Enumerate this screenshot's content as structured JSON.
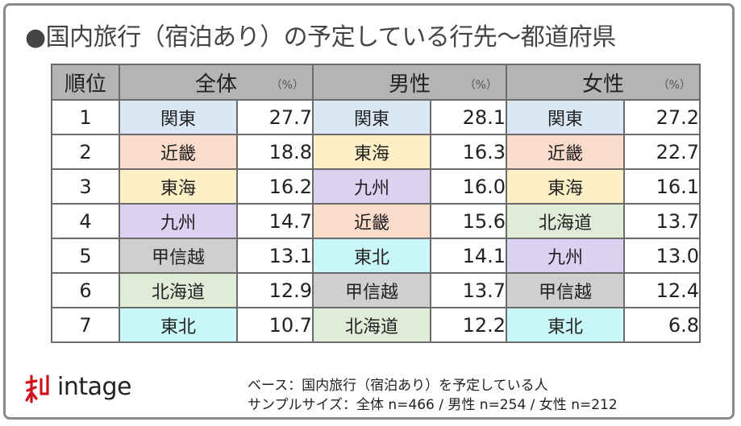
{
  "title": "●国内旅行（宿泊あり）の予定している行先～都道府県",
  "table": {
    "rank_header": "順位",
    "groups": [
      {
        "name": "全体",
        "unit": "（%）"
      },
      {
        "name": "男性",
        "unit": "（%）"
      },
      {
        "name": "女性",
        "unit": "（%）"
      }
    ],
    "rows": [
      {
        "rank": "1",
        "cells": [
          {
            "region": "関東",
            "value": "27.7",
            "color": "#dae8f5"
          },
          {
            "region": "関東",
            "value": "28.1",
            "color": "#dae8f5"
          },
          {
            "region": "関東",
            "value": "27.2",
            "color": "#dae8f5"
          }
        ]
      },
      {
        "rank": "2",
        "cells": [
          {
            "region": "近畿",
            "value": "18.8",
            "color": "#fbdccb"
          },
          {
            "region": "東海",
            "value": "16.3",
            "color": "#fdf0c6"
          },
          {
            "region": "近畿",
            "value": "22.7",
            "color": "#fbdccb"
          }
        ]
      },
      {
        "rank": "3",
        "cells": [
          {
            "region": "東海",
            "value": "16.2",
            "color": "#fdf0c6"
          },
          {
            "region": "九州",
            "value": "16.0",
            "color": "#ddd1f1"
          },
          {
            "region": "東海",
            "value": "16.1",
            "color": "#fdf0c6"
          }
        ]
      },
      {
        "rank": "4",
        "cells": [
          {
            "region": "九州",
            "value": "14.7",
            "color": "#ddd1f1"
          },
          {
            "region": "近畿",
            "value": "15.6",
            "color": "#fbdccb"
          },
          {
            "region": "北海道",
            "value": "13.7",
            "color": "#e0ebd8"
          }
        ]
      },
      {
        "rank": "5",
        "cells": [
          {
            "region": "甲信越",
            "value": "13.1",
            "color": "#cfcfcf"
          },
          {
            "region": "東北",
            "value": "14.1",
            "color": "#c9f6f6"
          },
          {
            "region": "九州",
            "value": "13.0",
            "color": "#ddd1f1"
          }
        ]
      },
      {
        "rank": "6",
        "cells": [
          {
            "region": "北海道",
            "value": "12.9",
            "color": "#e0ebd8"
          },
          {
            "region": "甲信越",
            "value": "13.7",
            "color": "#cfcfcf"
          },
          {
            "region": "甲信越",
            "value": "12.4",
            "color": "#cfcfcf"
          }
        ]
      },
      {
        "rank": "7",
        "cells": [
          {
            "region": "東北",
            "value": "10.7",
            "color": "#c9f6f6"
          },
          {
            "region": "北海道",
            "value": "12.2",
            "color": "#e0ebd8"
          },
          {
            "region": "東北",
            "value": "6.8",
            "color": "#c9f6f6"
          }
        ]
      }
    ]
  },
  "chart_data": {
    "type": "table",
    "title": "●国内旅行（宿泊あり）の予定している行先～都道府県",
    "columns": [
      "順位",
      "全体",
      "（%）",
      "男性",
      "（%）",
      "女性",
      "（%）"
    ],
    "rows": [
      [
        "1",
        "関東",
        27.7,
        "関東",
        28.1,
        "関東",
        27.2
      ],
      [
        "2",
        "近畿",
        18.8,
        "東海",
        16.3,
        "近畿",
        22.7
      ],
      [
        "3",
        "東海",
        16.2,
        "九州",
        16.0,
        "東海",
        16.1
      ],
      [
        "4",
        "九州",
        14.7,
        "近畿",
        15.6,
        "北海道",
        13.7
      ],
      [
        "5",
        "甲信越",
        13.1,
        "東北",
        14.1,
        "九州",
        13.0
      ],
      [
        "6",
        "北海道",
        12.9,
        "甲信越",
        13.7,
        "甲信越",
        12.4
      ],
      [
        "7",
        "東北",
        10.7,
        "北海道",
        12.2,
        "東北",
        6.8
      ]
    ]
  },
  "logo": {
    "text": "intage",
    "color": "#d0121b"
  },
  "footer": {
    "base": "ベース：国内旅行（宿泊あり）を予定している人",
    "sample": "サンプルサイズ：全体 n=466 / 男性 n=254 / 女性 n=212"
  }
}
